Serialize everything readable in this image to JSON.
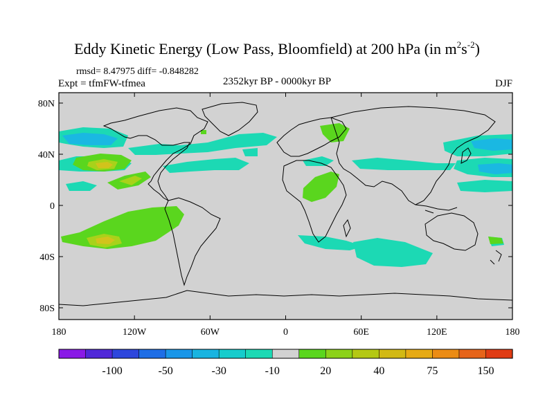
{
  "title": {
    "main": "Eddy Kinetic Energy (Low Pass, Bloomfield) at 200 hPa (in m",
    "sup1": "2",
    "mid": "s",
    "sup2": "-2",
    "close": ")"
  },
  "stats": "rmsd= 8.47975 diff= -0.848282",
  "experiment": "Expt = tfmFW-tfmea",
  "period": "2352kyr BP - 0000kyr BP",
  "season": "DJF",
  "map": {
    "lat_ticks": [
      "80N",
      "40N",
      "0",
      "40S",
      "80S"
    ],
    "lon_ticks": [
      "180",
      "120W",
      "60W",
      "0",
      "60E",
      "120E",
      "180"
    ],
    "background_color": "#d2d2d2"
  },
  "colorbar": {
    "labels": [
      "-100",
      "-50",
      "-30",
      "-10",
      "20",
      "40",
      "75",
      "150"
    ],
    "colors": [
      "#8a1ae6",
      "#5028d8",
      "#2d46dc",
      "#1e6ee6",
      "#1a96e8",
      "#18b4e0",
      "#16cccc",
      "#1cd9b4",
      "#d2d2d2",
      "#5ad61e",
      "#8cd21a",
      "#b4c814",
      "#d2b914",
      "#e6aa14",
      "#eb8c14",
      "#e6641a",
      "#e03c14"
    ]
  },
  "fields": {
    "cyan": "#1cd9b4",
    "blue": "#1ab8e2",
    "green": "#5ad61e",
    "yellowgreen": "#a8d21a",
    "yellow": "#d2c31c"
  }
}
